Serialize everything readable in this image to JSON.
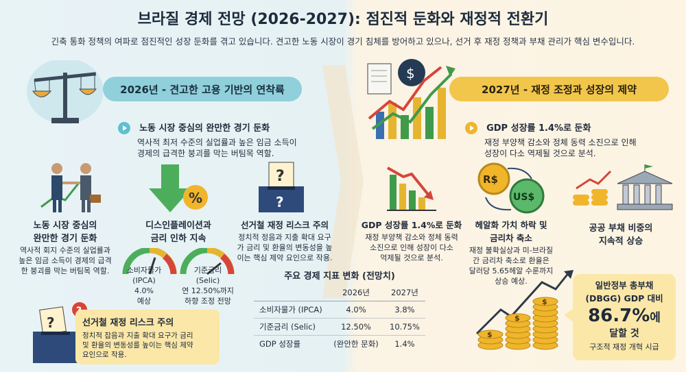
{
  "title": "브라질 경제 전망 (2026-2027): 점진적 둔화와 재정적 전환기",
  "subtitle": "긴축 통화 정책의 여파로 점진적인 성장 둔화를 겪고 있습니다. 견고한 노동 시장이 경기 침체를 방어하고 있으나, 선거 후 재정 정책과 부채 관리가 핵심 변수입니다.",
  "left": {
    "banner": "2026년 - 견고한 고용 기반의 연착륙",
    "intro": {
      "title": "노동 시장 중심의 완만한 경기 둔화",
      "line1": "역사적 최저 수준의 실업률과 높은 임금 소득이",
      "line2": "경제의 급격한 붕괴를 막는 버팀목 역할."
    },
    "col1": {
      "title1": "노동 시장 중심의",
      "title2": "완만한 경기 둔화",
      "l1": "역사적 회지 수준의 실업률과",
      "l2": "높은 임금 소득이 경제의 급격",
      "l3": "한 붕괴를 막는 버팀목 역할."
    },
    "col2": {
      "title1": "디스인플레이션과",
      "title2": "금리 인하 지속",
      "percent": "%",
      "g1": {
        "l1": "소비자물가",
        "l2": "(IPCA)",
        "l3": "4.0%",
        "l4": "예상"
      },
      "g2": {
        "l1": "기준금리",
        "l2": "(Selic)",
        "l3": "연 12.50%까지",
        "l4": "하향 조정 전망"
      }
    },
    "col3": {
      "title": "선거철 재정 리스크 주의",
      "l1": "정치적 정음과 지출 확대 요구",
      "l2": "가 금리 및 환율의 변동성을 높",
      "l3": "이는 핵심 제약 요인으로 작용.",
      "mark": "?"
    },
    "risk": {
      "title": "선거철 재정 리스크 주의",
      "l1": "정치적 잡음과 지출 확대 요구가 금리",
      "l2": "및 환율의 변동성를 높이는 핵심 제약",
      "l3": "요인으로 작용.",
      "mark": "?"
    }
  },
  "right": {
    "banner": "2027년 - 재정 조정과 성장의 제약",
    "intro": {
      "title": "GDP 성장률 1.4%로 둔화",
      "line1": "재정 부양책 감소와 정체 동력 소진으로 인해",
      "line2": "성장이 다소 역제될 것으로 분석."
    },
    "col1": {
      "title": "GDP 성장률 1.4%로 둔화",
      "l1": "재정 부양책 감소와 정체 동력",
      "l2": "소진으로 인해 성장이 다소",
      "l3": "억제될 것으로 분석."
    },
    "col2": {
      "title1": "헤알화 가치 하락 및",
      "title2": "금리차 축소",
      "l1": "재정 불확실상과 미-브라질",
      "l2": "간 금리차 축소로 환율은",
      "l3": "달러당 5.65헤알 수룬까지",
      "l4": "상승 예상.",
      "coin1": "R$",
      "coin2": "US$"
    },
    "col3": {
      "title1": "공공 부채 비중의",
      "title2": "지속적 상승"
    },
    "debt": {
      "l1": "일반정부 총부채",
      "l2": "(DBGG) GDP 대비",
      "value": "86.7%",
      "suffix": "에",
      "l3": "달할 것",
      "l4": "구조적 재정 개혁 시급"
    }
  },
  "table": {
    "title": "주요 경제 지표 변화 (전망치)",
    "headers": [
      "",
      "2026년",
      "2027년"
    ],
    "rows": [
      {
        "label": "소비자물가 (IPCA)",
        "y2026": "4.0%",
        "y2027": "3.8%"
      },
      {
        "label": "기준금리 (Selic)",
        "y2026": "12.50%",
        "y2027": "10.75%"
      },
      {
        "label": "GDP 성장률",
        "y2026": "(완안한 문화)",
        "y2027": "1.4%"
      }
    ]
  },
  "icons": {
    "dollar": "$"
  },
  "colors": {
    "teal": "#8fd0db",
    "gold": "#f2c64a",
    "green": "#3f9a4a",
    "red": "#d6453a"
  }
}
